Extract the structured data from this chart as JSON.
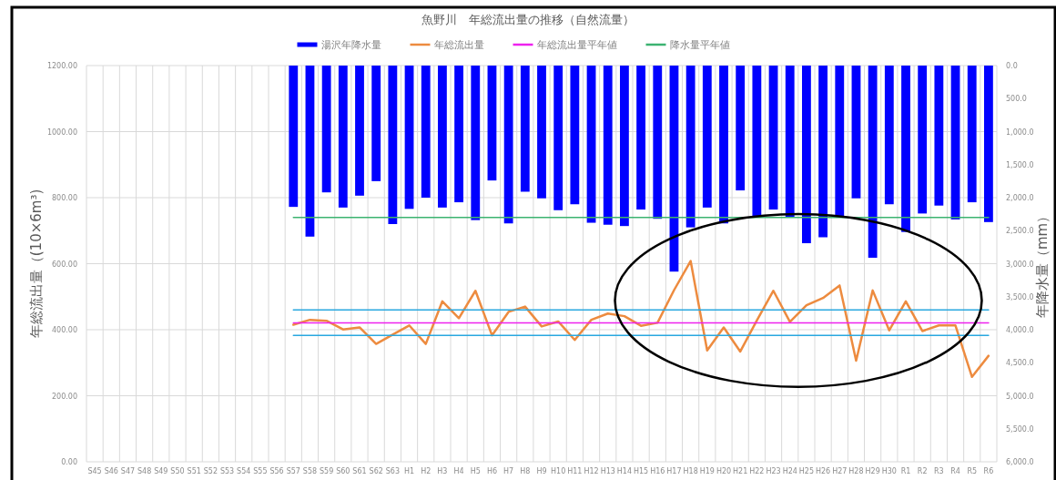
{
  "chart_data": {
    "type": "bar",
    "title": "魚野川　年総流出量の推移（自然流量）",
    "categories": [
      "S45",
      "S46",
      "S47",
      "S48",
      "S49",
      "S50",
      "S51",
      "S52",
      "S53",
      "S54",
      "S55",
      "S56",
      "S57",
      "S58",
      "S59",
      "S60",
      "S61",
      "S62",
      "S63",
      "H1",
      "H2",
      "H3",
      "H4",
      "H5",
      "H6",
      "H7",
      "H8",
      "H9",
      "H10",
      "H11",
      "H12",
      "H13",
      "H14",
      "H15",
      "H16",
      "H17",
      "H18",
      "H19",
      "H20",
      "H21",
      "H22",
      "H23",
      "H24",
      "H25",
      "H26",
      "H27",
      "H28",
      "H29",
      "H30",
      "R1",
      "R2",
      "R3",
      "R4",
      "R5",
      "R6"
    ],
    "series": [
      {
        "name": "湯沢年降水量",
        "axis": "y2",
        "color": "#0000ff",
        "values": [
          null,
          null,
          null,
          null,
          null,
          null,
          null,
          null,
          null,
          null,
          null,
          null,
          2140,
          2590,
          1920,
          2150,
          1970,
          1750,
          2400,
          2170,
          2000,
          2150,
          2070,
          2340,
          1740,
          2390,
          1910,
          2010,
          2190,
          2100,
          2380,
          2410,
          2430,
          2180,
          2320,
          3120,
          2450,
          2150,
          2390,
          1890,
          2300,
          2180,
          2300,
          2690,
          2600,
          2290,
          2010,
          2910,
          2100,
          2520,
          2240,
          2120,
          2330,
          2070,
          2370
        ]
      },
      {
        "name": "年総流出量",
        "type": "line",
        "color": "#ed8b3f",
        "values": [
          null,
          null,
          null,
          null,
          null,
          null,
          null,
          null,
          null,
          null,
          null,
          null,
          415,
          430,
          427,
          401,
          407,
          357,
          385,
          413,
          357,
          486,
          435,
          518,
          383,
          454,
          470,
          410,
          425,
          369,
          430,
          449,
          441,
          412,
          421,
          520,
          608,
          337,
          407,
          334,
          428,
          518,
          424,
          474,
          496,
          534,
          306,
          519,
          398,
          486,
          396,
          413,
          413,
          257,
          321
        ]
      },
      {
        "name": "年総流出量平年値",
        "type": "line",
        "color": "#ee22ee",
        "values": [
          null,
          null,
          null,
          null,
          null,
          null,
          null,
          null,
          null,
          null,
          null,
          null,
          421,
          421,
          421,
          421,
          421,
          421,
          421,
          421,
          421,
          421,
          421,
          421,
          421,
          421,
          421,
          421,
          421,
          421,
          421,
          421,
          421,
          421,
          421,
          421,
          421,
          421,
          421,
          421,
          421,
          421,
          421,
          421,
          421,
          421,
          421,
          421,
          421,
          421,
          421,
          421,
          421,
          421,
          421
        ]
      },
      {
        "name": "降水量平年値",
        "type": "line",
        "axis": "y2",
        "color": "#3cb371",
        "values": [
          null,
          null,
          null,
          null,
          null,
          null,
          null,
          null,
          null,
          null,
          null,
          null,
          2300,
          2300,
          2300,
          2300,
          2300,
          2300,
          2300,
          2300,
          2300,
          2300,
          2300,
          2300,
          2300,
          2300,
          2300,
          2300,
          2300,
          2300,
          2300,
          2300,
          2300,
          2300,
          2300,
          2300,
          2300,
          2300,
          2300,
          2300,
          2300,
          2300,
          2300,
          2300,
          2300,
          2300,
          2300,
          2300,
          2300,
          2300,
          2300,
          2300,
          2300,
          2300,
          2300
        ]
      },
      {
        "type": "line",
        "color": "#29a8e0",
        "values": [
          null,
          null,
          null,
          null,
          null,
          null,
          null,
          null,
          null,
          null,
          null,
          null,
          460,
          460,
          460,
          460,
          460,
          460,
          460,
          460,
          460,
          460,
          460,
          460,
          460,
          460,
          460,
          460,
          460,
          460,
          460,
          460,
          460,
          460,
          460,
          460,
          460,
          460,
          460,
          460,
          460,
          460,
          460,
          460,
          460,
          460,
          460,
          460,
          460,
          460,
          460,
          460,
          460,
          460,
          460
        ]
      },
      {
        "type": "line",
        "color": "#29a8e0",
        "values": [
          null,
          null,
          null,
          null,
          null,
          null,
          null,
          null,
          null,
          null,
          null,
          null,
          383,
          383,
          383,
          383,
          383,
          383,
          383,
          383,
          383,
          383,
          383,
          383,
          383,
          383,
          383,
          383,
          383,
          383,
          383,
          383,
          383,
          383,
          383,
          383,
          383,
          383,
          383,
          383,
          383,
          383,
          383,
          383,
          383,
          383,
          383,
          383,
          383,
          383,
          383,
          383,
          383,
          383,
          383
        ]
      }
    ],
    "ylabel": "年総流出量（(10×6m³)",
    "y2label": "年降水量（mm）",
    "ylim": [
      0,
      1200
    ],
    "yticks": [
      {
        "value": 0,
        "label": "0.00"
      },
      {
        "value": 200,
        "label": "200.00"
      },
      {
        "value": 400,
        "label": "400.00"
      },
      {
        "value": 600,
        "label": "600.00"
      },
      {
        "value": 800,
        "label": "800.00"
      },
      {
        "value": 1000,
        "label": "1000.00"
      },
      {
        "value": 1200,
        "label": "1200.00"
      }
    ],
    "y2lim": [
      6000,
      0
    ],
    "y2ticks": [
      {
        "value": 0,
        "label": "0.0"
      },
      {
        "value": 500,
        "label": "500.0"
      },
      {
        "value": 1000,
        "label": "1,000.0"
      },
      {
        "value": 1500,
        "label": "1,500.0"
      },
      {
        "value": 2000,
        "label": "2,000.0"
      },
      {
        "value": 2500,
        "label": "2,500.0"
      },
      {
        "value": 3000,
        "label": "3,000.0"
      },
      {
        "value": 3500,
        "label": "3,500.0"
      },
      {
        "value": 4000,
        "label": "4,000.0"
      },
      {
        "value": 4500,
        "label": "4,500.0"
      },
      {
        "value": 5000,
        "label": "5,000.0"
      },
      {
        "value": 5500,
        "label": "5,500.0"
      },
      {
        "value": 6000,
        "label": "6,000.0"
      }
    ],
    "grid": true,
    "legend": "top"
  }
}
